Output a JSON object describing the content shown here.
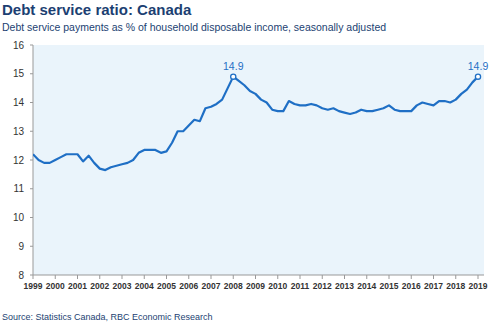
{
  "chart_data": {
    "type": "line",
    "title": "Debt service ratio: Canada",
    "subtitle": "Debt service payments as % of household disposable income, seasonally adjusted",
    "source": "Source: Statistics Canada, RBC Economic Research",
    "categories": [
      "1999",
      null,
      null,
      null,
      "2000",
      null,
      null,
      null,
      "2001",
      null,
      null,
      null,
      "2002",
      null,
      null,
      null,
      "2003",
      null,
      null,
      null,
      "2004",
      null,
      null,
      null,
      "2005",
      null,
      null,
      null,
      "2006",
      null,
      null,
      null,
      "2007",
      null,
      null,
      null,
      "2008",
      null,
      null,
      null,
      "2009",
      null,
      null,
      null,
      "2010",
      null,
      null,
      null,
      "2011",
      null,
      null,
      null,
      "2012",
      null,
      null,
      null,
      "2013",
      null,
      null,
      null,
      "2014",
      null,
      null,
      null,
      "2015",
      null,
      null,
      null,
      "2016",
      null,
      null,
      null,
      "2017",
      null,
      null,
      null,
      "2018",
      null,
      null,
      null,
      "2019"
    ],
    "series": [
      {
        "name": "Debt service ratio",
        "color": "#1f6fc5",
        "values": [
          12.2,
          12.0,
          11.9,
          11.9,
          12.0,
          12.1,
          12.2,
          12.2,
          12.2,
          11.95,
          12.15,
          11.9,
          11.7,
          11.65,
          11.75,
          11.8,
          11.85,
          11.9,
          12.0,
          12.25,
          12.35,
          12.35,
          12.35,
          12.25,
          12.3,
          12.6,
          13.0,
          13.0,
          13.2,
          13.4,
          13.35,
          13.8,
          13.85,
          13.95,
          14.1,
          14.5,
          14.9,
          14.75,
          14.6,
          14.4,
          14.3,
          14.1,
          14.0,
          13.75,
          13.7,
          13.7,
          14.05,
          13.95,
          13.9,
          13.9,
          13.95,
          13.9,
          13.8,
          13.75,
          13.8,
          13.7,
          13.65,
          13.6,
          13.65,
          13.75,
          13.7,
          13.7,
          13.75,
          13.8,
          13.9,
          13.75,
          13.7,
          13.7,
          13.7,
          13.9,
          14.0,
          13.95,
          13.9,
          14.05,
          14.05,
          14.0,
          14.1,
          14.3,
          14.45,
          14.7,
          14.9
        ]
      }
    ],
    "annotations": [
      {
        "text": "14.9",
        "point": 36,
        "value": 14.9
      },
      {
        "text": "14.9",
        "point": 80,
        "value": 14.9
      }
    ],
    "ylim": [
      8,
      16
    ],
    "yticks": [
      8,
      9,
      10,
      11,
      12,
      13,
      14,
      15,
      16
    ],
    "grid": false
  }
}
